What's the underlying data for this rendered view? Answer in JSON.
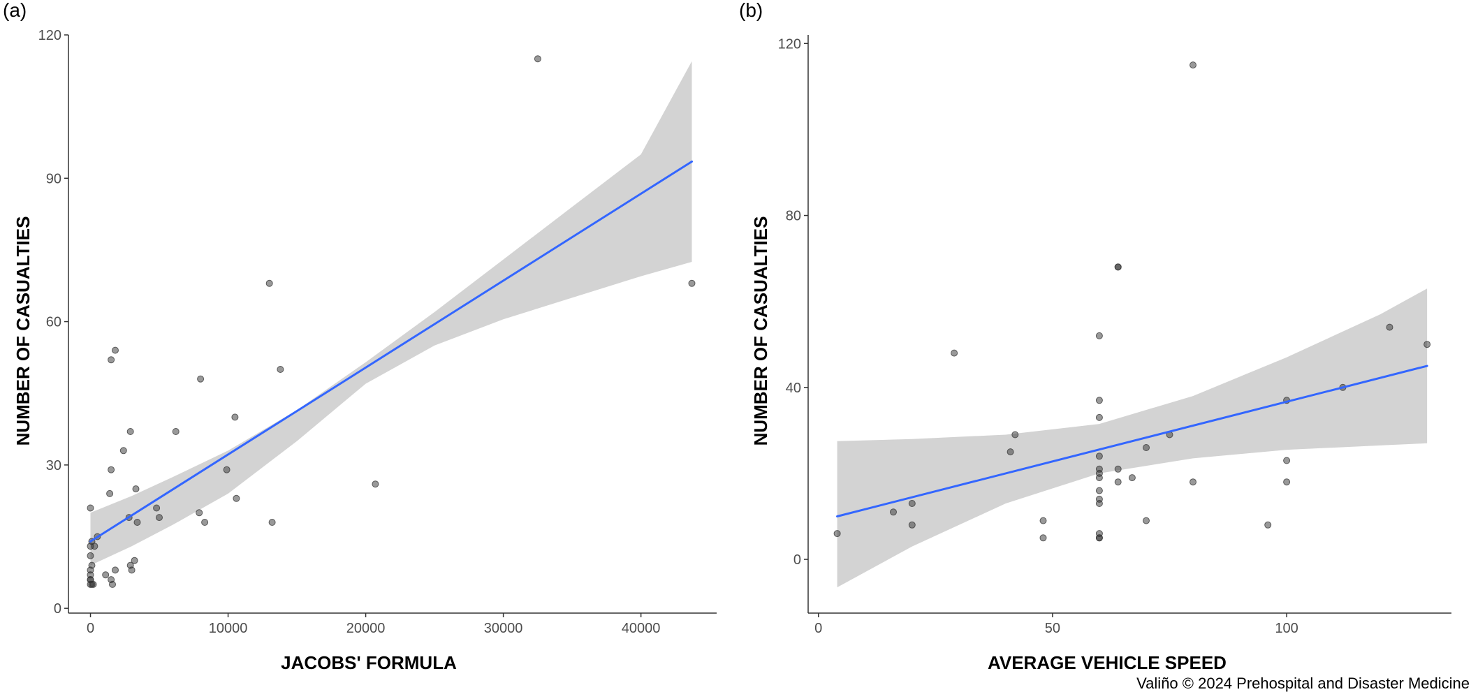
{
  "credit": "Valiño © 2024 Prehospital and Disaster Medicine",
  "colors": {
    "points": "#333333",
    "fit_line": "#3366ff",
    "ribbon": "#d3d3d3",
    "axis": "#333333"
  },
  "chart_data": [
    {
      "type": "scatter",
      "panel_label": "(a)",
      "xlabel": "JACOBS' FORMULA",
      "ylabel": "NUMBER OF CASUALTIES",
      "xlim": [
        -1600,
        45500
      ],
      "ylim": [
        -1,
        120
      ],
      "xticks": [
        0,
        10000,
        20000,
        30000,
        40000
      ],
      "xtick_labels": [
        "0",
        "10000",
        "20000",
        "30000",
        "40000"
      ],
      "yticks": [
        0,
        30,
        60,
        90,
        120
      ],
      "ytick_labels": [
        "0",
        "30",
        "60",
        "90",
        "120"
      ],
      "grid": false,
      "points": [
        [
          32500,
          115
        ],
        [
          43700,
          68
        ],
        [
          13000,
          68
        ],
        [
          1800,
          54
        ],
        [
          1500,
          52
        ],
        [
          13800,
          50
        ],
        [
          8000,
          48
        ],
        [
          10500,
          40
        ],
        [
          6200,
          37
        ],
        [
          2900,
          37
        ],
        [
          2400,
          33
        ],
        [
          1500,
          29
        ],
        [
          9900,
          29
        ],
        [
          20700,
          26
        ],
        [
          3300,
          25
        ],
        [
          1400,
          24
        ],
        [
          10600,
          23
        ],
        [
          4800,
          21
        ],
        [
          0,
          21
        ],
        [
          7900,
          20
        ],
        [
          2800,
          19
        ],
        [
          5000,
          19
        ],
        [
          8300,
          18
        ],
        [
          3400,
          18
        ],
        [
          13200,
          18
        ],
        [
          500,
          15
        ],
        [
          100,
          14
        ],
        [
          0,
          13
        ],
        [
          300,
          13
        ],
        [
          0,
          11
        ],
        [
          3200,
          10
        ],
        [
          100,
          9
        ],
        [
          2900,
          9
        ],
        [
          1800,
          8
        ],
        [
          3000,
          8
        ],
        [
          0,
          8
        ],
        [
          1100,
          7
        ],
        [
          0,
          7
        ],
        [
          0,
          6
        ],
        [
          1500,
          6
        ],
        [
          0,
          6
        ],
        [
          0,
          5
        ],
        [
          200,
          5
        ],
        [
          1600,
          5
        ],
        [
          100,
          5
        ]
      ],
      "fit_line": [
        [
          0,
          14
        ],
        [
          43700,
          93.5
        ]
      ],
      "confidence_band": {
        "x": [
          0,
          3000,
          6000,
          10000,
          15000,
          20000,
          25000,
          30000,
          35000,
          40000,
          43700
        ],
        "upper": [
          20,
          23.5,
          27.5,
          33,
          41.5,
          51.5,
          62,
          73,
          84,
          95,
          114.5
        ],
        "lower": [
          9,
          13,
          17.5,
          24,
          35,
          47,
          55,
          60.5,
          65,
          69.5,
          72.5
        ]
      }
    },
    {
      "type": "scatter",
      "panel_label": "(b)",
      "xlabel": "AVERAGE VEHICLE SPEED",
      "ylabel": "NUMBER OF CASUALTIES",
      "xlim": [
        -2.2,
        135.2
      ],
      "ylim": [
        -12.5,
        122
      ],
      "xticks": [
        0,
        50,
        100
      ],
      "xtick_labels": [
        "0",
        "50",
        "100"
      ],
      "yticks": [
        0,
        40,
        80,
        120
      ],
      "ytick_labels": [
        "0",
        "40",
        "80",
        "120"
      ],
      "grid": false,
      "points": [
        [
          80,
          115
        ],
        [
          64,
          68
        ],
        [
          64,
          68
        ],
        [
          60,
          52
        ],
        [
          122,
          54
        ],
        [
          130,
          50
        ],
        [
          29,
          48
        ],
        [
          112,
          40
        ],
        [
          60,
          37
        ],
        [
          100,
          37
        ],
        [
          60,
          33
        ],
        [
          42,
          29
        ],
        [
          75,
          29
        ],
        [
          70,
          26
        ],
        [
          41,
          25
        ],
        [
          60,
          24
        ],
        [
          100,
          23
        ],
        [
          60,
          21
        ],
        [
          64,
          21
        ],
        [
          60,
          20
        ],
        [
          60,
          19
        ],
        [
          67,
          19
        ],
        [
          64,
          18
        ],
        [
          80,
          18
        ],
        [
          100,
          18
        ],
        [
          60,
          16
        ],
        [
          60,
          14
        ],
        [
          60,
          13
        ],
        [
          20,
          13
        ],
        [
          16,
          11
        ],
        [
          48,
          9
        ],
        [
          70,
          9
        ],
        [
          20,
          8
        ],
        [
          96,
          8
        ],
        [
          4,
          6
        ],
        [
          60,
          6
        ],
        [
          48,
          5
        ],
        [
          60,
          5
        ],
        [
          60,
          5
        ]
      ],
      "fit_line": [
        [
          4,
          10
        ],
        [
          130,
          45
        ]
      ],
      "confidence_band": {
        "x": [
          4,
          20,
          40,
          60,
          80,
          100,
          120,
          130
        ],
        "upper": [
          27.5,
          28,
          29,
          31.5,
          38,
          47,
          57,
          63
        ],
        "lower": [
          -6.5,
          3,
          13,
          20,
          23.5,
          25.5,
          26.5,
          27
        ]
      }
    }
  ]
}
